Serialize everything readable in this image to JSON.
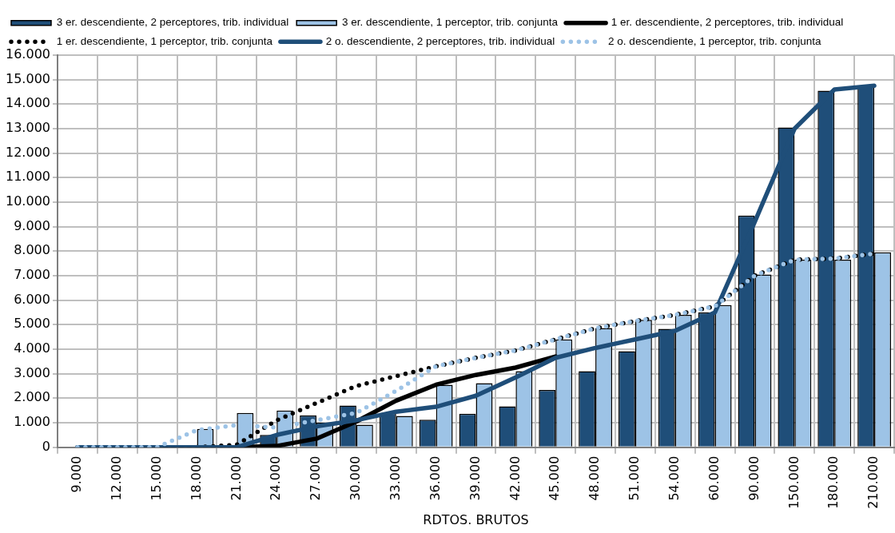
{
  "chart_data": {
    "type": "bar",
    "xlabel": "RDTOS. BRUTOS",
    "categories": [
      "9.000",
      "12.000",
      "15.000",
      "18.000",
      "21.000",
      "24.000",
      "27.000",
      "30.000",
      "33.000",
      "36.000",
      "39.000",
      "42.000",
      "45.000",
      "48.000",
      "51.000",
      "54.000",
      "60.000",
      "90.000",
      "150.000",
      "180.000",
      "210.000"
    ],
    "series": [
      {
        "name": "3 er. descendiente, 2 perceptores, trib. individual",
        "color": "#1f4e79",
        "values": [
          0,
          0,
          0,
          0,
          0,
          500,
          1300,
          1700,
          1400,
          1120,
          1370,
          1670,
          2340,
          3100,
          3920,
          4830,
          5500,
          9450,
          13050,
          14550,
          14750
        ]
      },
      {
        "name": "3 er. descendiente, 1 perceptor, trib. conjunta",
        "color": "#9dc3e6",
        "values": [
          0,
          0,
          0,
          750,
          1400,
          1500,
          1000,
          920,
          1280,
          2550,
          2610,
          3100,
          4400,
          4860,
          5200,
          5400,
          5800,
          7050,
          7650,
          7650,
          7950
        ]
      },
      {
        "name": "1 er. descendiente, 2 perceptores, trib. individual",
        "type": "line",
        "color": "#000000",
        "line_style": "solid",
        "values": [
          0,
          0,
          0,
          0,
          0,
          50,
          350,
          1050,
          1900,
          2550,
          2950,
          3250,
          3700,
          null,
          null,
          null,
          null,
          null,
          null,
          null,
          null
        ]
      },
      {
        "name": "1 er. descendiente, 1 perceptor, trib. conjunta",
        "type": "line",
        "color": "#000000",
        "line_style": "dotted",
        "values": [
          0,
          0,
          0,
          0,
          100,
          1100,
          1800,
          2500,
          2900,
          3300,
          3650,
          3950,
          4400,
          4850,
          5150,
          5400,
          5750,
          7000,
          7650,
          7700,
          7900
        ]
      },
      {
        "name": "2 o. descendiente, 2 perceptores, trib. individual",
        "type": "line",
        "color": "#1f4e79",
        "line_style": "solid",
        "values": [
          0,
          0,
          0,
          0,
          0,
          500,
          850,
          1100,
          1450,
          1650,
          2100,
          2850,
          3650,
          4050,
          4400,
          4750,
          5500,
          9200,
          13000,
          14600,
          14750
        ]
      },
      {
        "name": "2 o. descendiente, 1 perceptor, trib. conjunta",
        "type": "line",
        "color": "#9dc3e6",
        "line_style": "dotted",
        "values": [
          0,
          0,
          0,
          700,
          900,
          800,
          1100,
          1400,
          2300,
          3300,
          3650,
          3950,
          4400,
          4850,
          5150,
          5400,
          5750,
          7000,
          7650,
          7700,
          7900
        ]
      }
    ],
    "ylim": [
      0,
      16000
    ],
    "yticks": [
      {
        "value": 0,
        "label": "0"
      },
      {
        "value": 1000,
        "label": "1.000"
      },
      {
        "value": 2000,
        "label": "2.000"
      },
      {
        "value": 3000,
        "label": "3.000"
      },
      {
        "value": 4000,
        "label": "4.000"
      },
      {
        "value": 5000,
        "label": "5.000"
      },
      {
        "value": 6000,
        "label": "6.000"
      },
      {
        "value": 7000,
        "label": "7.000"
      },
      {
        "value": 8000,
        "label": "8.000"
      },
      {
        "value": 9000,
        "label": "9.000"
      },
      {
        "value": 10000,
        "label": "10.000"
      },
      {
        "value": 11000,
        "label": "11.000"
      },
      {
        "value": 12000,
        "label": "12.000"
      },
      {
        "value": 13000,
        "label": "13.000"
      },
      {
        "value": 14000,
        "label": "14.000"
      },
      {
        "value": 15000,
        "label": "15.000"
      },
      {
        "value": 16000,
        "label": "16.000"
      }
    ],
    "grid": true,
    "legend": "top",
    "marker": "none"
  }
}
